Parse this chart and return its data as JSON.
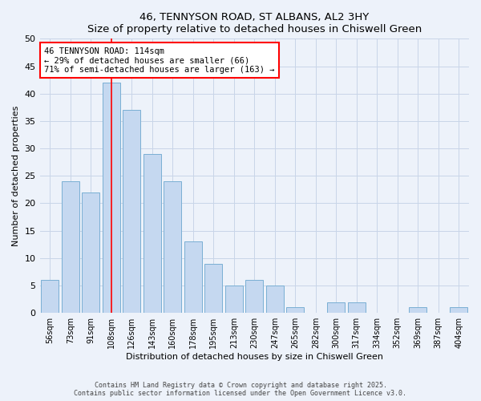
{
  "title": "46, TENNYSON ROAD, ST ALBANS, AL2 3HY",
  "subtitle": "Size of property relative to detached houses in Chiswell Green",
  "xlabel": "Distribution of detached houses by size in Chiswell Green",
  "ylabel": "Number of detached properties",
  "bar_labels": [
    "56sqm",
    "73sqm",
    "91sqm",
    "108sqm",
    "126sqm",
    "143sqm",
    "160sqm",
    "178sqm",
    "195sqm",
    "213sqm",
    "230sqm",
    "247sqm",
    "265sqm",
    "282sqm",
    "300sqm",
    "317sqm",
    "334sqm",
    "352sqm",
    "369sqm",
    "387sqm",
    "404sqm"
  ],
  "bar_values": [
    6,
    24,
    22,
    42,
    37,
    29,
    24,
    13,
    9,
    5,
    6,
    5,
    1,
    0,
    2,
    2,
    0,
    0,
    1,
    0,
    1
  ],
  "bar_color": "#c5d8f0",
  "bar_edge_color": "#7aafd4",
  "reference_line_index": 3,
  "ylim": [
    0,
    50
  ],
  "yticks": [
    0,
    5,
    10,
    15,
    20,
    25,
    30,
    35,
    40,
    45,
    50
  ],
  "annotation_line1": "46 TENNYSON ROAD: 114sqm",
  "annotation_line2": "← 29% of detached houses are smaller (66)",
  "annotation_line3": "71% of semi-detached houses are larger (163) →",
  "footer_line1": "Contains HM Land Registry data © Crown copyright and database right 2025.",
  "footer_line2": "Contains public sector information licensed under the Open Government Licence v3.0.",
  "bg_color": "#edf2fa",
  "grid_color": "#c8d5e8"
}
